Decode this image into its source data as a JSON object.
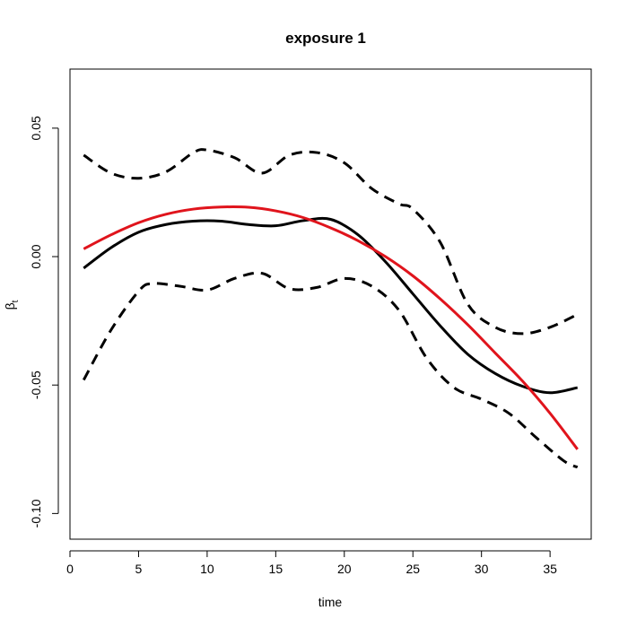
{
  "chart_data": {
    "type": "line",
    "title": "exposure 1",
    "xlabel": "time",
    "ylabel": {
      "main": "β",
      "subscript": "t"
    },
    "xlim": [
      0,
      38
    ],
    "ylim": [
      -0.11,
      0.073
    ],
    "xticks": [
      0,
      5,
      10,
      15,
      20,
      25,
      30,
      35
    ],
    "xtick_labels": [
      "0",
      "5",
      "10",
      "15",
      "20",
      "25",
      "30",
      "35"
    ],
    "yticks": [
      -0.1,
      -0.05,
      0.0,
      0.05
    ],
    "ytick_labels": [
      "-0.10",
      "-0.05",
      "0.00",
      "0.05"
    ],
    "grid": false,
    "legend": "none",
    "series": [
      {
        "style": "solid",
        "color": "#000000",
        "x": [
          1,
          3,
          5,
          7,
          9,
          11,
          13,
          15,
          17,
          19,
          21,
          23,
          25,
          27,
          29,
          31,
          33,
          35,
          37
        ],
        "y": [
          -0.0045,
          0.0035,
          0.0095,
          0.0125,
          0.0138,
          0.0138,
          0.0125,
          0.012,
          0.014,
          0.0145,
          0.0085,
          -0.002,
          -0.0145,
          -0.027,
          -0.038,
          -0.0455,
          -0.0505,
          -0.053,
          -0.051
        ]
      },
      {
        "style": "dashed",
        "color": "#000000",
        "x": [
          1,
          3,
          5,
          7,
          9,
          10,
          12,
          14,
          16,
          18,
          20,
          22,
          24,
          25,
          27,
          29,
          31,
          33,
          35,
          37
        ],
        "y": [
          0.0395,
          0.0325,
          0.0305,
          0.033,
          0.0405,
          0.0415,
          0.0385,
          0.0325,
          0.0395,
          0.0405,
          0.0365,
          0.0265,
          0.0205,
          0.0185,
          0.0055,
          -0.0185,
          -0.0275,
          -0.03,
          -0.0275,
          -0.0225
        ]
      },
      {
        "style": "dashed",
        "color": "#000000",
        "x": [
          1,
          3,
          5,
          6,
          8,
          10,
          12,
          14,
          16,
          18,
          20,
          22,
          24,
          26,
          28,
          30,
          32,
          34,
          36,
          37
        ],
        "y": [
          -0.048,
          -0.0285,
          -0.0135,
          -0.0105,
          -0.0115,
          -0.013,
          -0.0085,
          -0.0065,
          -0.0125,
          -0.012,
          -0.0085,
          -0.0115,
          -0.021,
          -0.0395,
          -0.051,
          -0.0555,
          -0.061,
          -0.0705,
          -0.0795,
          -0.082
        ]
      },
      {
        "style": "solid",
        "color": "#e0141c",
        "x": [
          1,
          3,
          5,
          7,
          9,
          11,
          13,
          15,
          17,
          19,
          21,
          23,
          25,
          27,
          29,
          31,
          33,
          35,
          37
        ],
        "y": [
          0.003,
          0.0085,
          0.0132,
          0.0165,
          0.0185,
          0.0193,
          0.0192,
          0.0178,
          0.0152,
          0.0112,
          0.0062,
          0.0,
          -0.0075,
          -0.0165,
          -0.0265,
          -0.0375,
          -0.0485,
          -0.061,
          -0.075
        ]
      }
    ]
  }
}
